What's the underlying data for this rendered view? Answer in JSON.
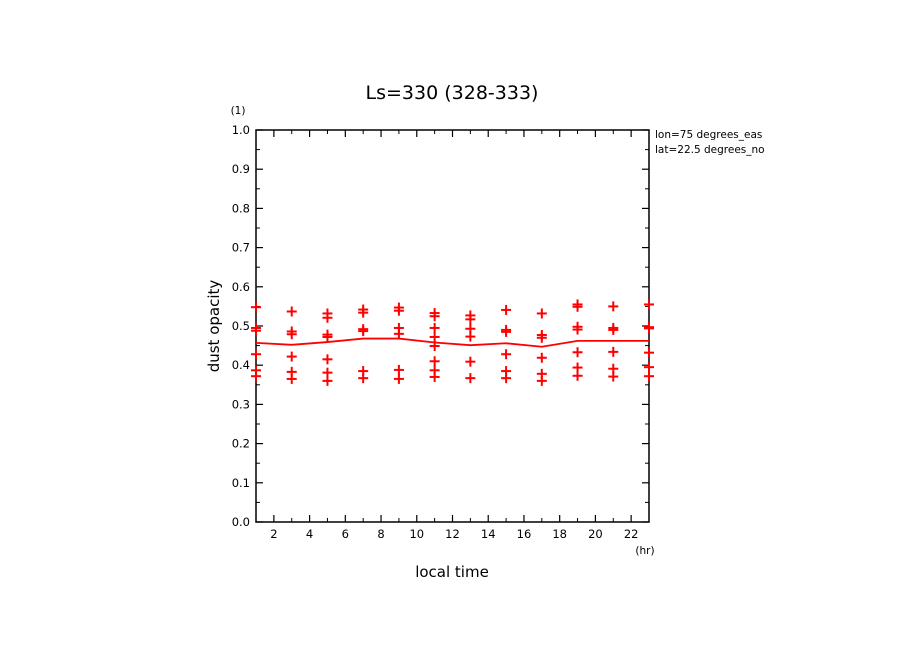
{
  "chart_data": {
    "type": "scatter",
    "title": "Ls=330 (328-333)",
    "xlabel": "local time",
    "ylabel": "dust opacity",
    "x_unit": "(hr)",
    "y_unit": "(1)",
    "annotations": [
      "lon=75 degrees_eas",
      "lat=22.5 degrees_no"
    ],
    "xlim": [
      1,
      23
    ],
    "ylim": [
      0.0,
      1.0
    ],
    "x_ticks": [
      2,
      4,
      6,
      8,
      10,
      12,
      14,
      16,
      18,
      20,
      22
    ],
    "y_ticks": [
      "0.0",
      "0.1",
      "0.2",
      "0.3",
      "0.4",
      "0.5",
      "0.6",
      "0.7",
      "0.8",
      "0.9",
      "1.0"
    ],
    "color": "#ff0000",
    "line": {
      "x": [
        1,
        3,
        5,
        7,
        9,
        11,
        13,
        15,
        17,
        19,
        21,
        23
      ],
      "y": [
        0.457,
        0.452,
        0.459,
        0.468,
        0.468,
        0.458,
        0.451,
        0.456,
        0.447,
        0.462,
        0.462,
        0.462
      ]
    },
    "points": [
      {
        "x": 1,
        "y": [
          0.548,
          0.495,
          0.488,
          0.428,
          0.387,
          0.372
        ]
      },
      {
        "x": 3,
        "y": [
          0.537,
          0.486,
          0.479,
          0.422,
          0.383,
          0.365
        ]
      },
      {
        "x": 5,
        "y": [
          0.532,
          0.521,
          0.478,
          0.472,
          0.415,
          0.381,
          0.36
        ]
      },
      {
        "x": 7,
        "y": [
          0.542,
          0.534,
          0.492,
          0.487,
          0.385,
          0.367
        ]
      },
      {
        "x": 9,
        "y": [
          0.547,
          0.539,
          0.495,
          0.48,
          0.388,
          0.365
        ]
      },
      {
        "x": 11,
        "y": [
          0.533,
          0.525,
          0.495,
          0.472,
          0.449,
          0.41,
          0.387,
          0.37
        ]
      },
      {
        "x": 13,
        "y": [
          0.527,
          0.517,
          0.493,
          0.473,
          0.409,
          0.367
        ]
      },
      {
        "x": 15,
        "y": [
          0.541,
          0.49,
          0.485,
          0.428,
          0.385,
          0.367
        ]
      },
      {
        "x": 17,
        "y": [
          0.532,
          0.477,
          0.47,
          0.419,
          0.378,
          0.36
        ]
      },
      {
        "x": 19,
        "y": [
          0.555,
          0.549,
          0.498,
          0.491,
          0.433,
          0.394,
          0.373
        ]
      },
      {
        "x": 21,
        "y": [
          0.55,
          0.495,
          0.49,
          0.434,
          0.391,
          0.371
        ]
      },
      {
        "x": 23,
        "y": [
          0.555,
          0.497,
          0.494,
          0.432,
          0.395,
          0.372
        ]
      }
    ]
  }
}
